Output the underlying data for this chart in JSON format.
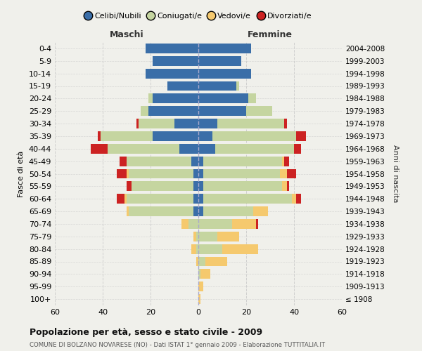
{
  "age_groups": [
    "0-4",
    "5-9",
    "10-14",
    "15-19",
    "20-24",
    "25-29",
    "30-34",
    "35-39",
    "40-44",
    "45-49",
    "50-54",
    "55-59",
    "60-64",
    "65-69",
    "70-74",
    "75-79",
    "80-84",
    "85-89",
    "90-94",
    "95-99",
    "100+"
  ],
  "birth_years": [
    "2004-2008",
    "1999-2003",
    "1994-1998",
    "1989-1993",
    "1984-1988",
    "1979-1983",
    "1974-1978",
    "1969-1973",
    "1964-1968",
    "1959-1963",
    "1954-1958",
    "1949-1953",
    "1944-1948",
    "1939-1943",
    "1934-1938",
    "1929-1933",
    "1924-1928",
    "1919-1923",
    "1914-1918",
    "1909-1913",
    "≤ 1908"
  ],
  "colors": {
    "celibi": "#3a6ea8",
    "coniugati": "#c5d5a0",
    "vedovi": "#f5c96e",
    "divorziati": "#cc2222"
  },
  "maschi": {
    "celibi": [
      22,
      19,
      22,
      13,
      19,
      21,
      10,
      19,
      8,
      3,
      2,
      2,
      2,
      2,
      0,
      0,
      0,
      0,
      0,
      0,
      0
    ],
    "coniugati": [
      0,
      0,
      0,
      0,
      2,
      3,
      15,
      22,
      30,
      27,
      27,
      26,
      28,
      27,
      4,
      1,
      1,
      0,
      0,
      0,
      0
    ],
    "vedovi": [
      0,
      0,
      0,
      0,
      0,
      0,
      0,
      0,
      0,
      0,
      1,
      0,
      1,
      1,
      3,
      1,
      2,
      1,
      0,
      0,
      0
    ],
    "divorziati": [
      0,
      0,
      0,
      0,
      0,
      0,
      1,
      1,
      7,
      3,
      4,
      2,
      3,
      0,
      0,
      0,
      0,
      0,
      0,
      0,
      0
    ]
  },
  "femmine": {
    "celibi": [
      22,
      18,
      22,
      16,
      21,
      20,
      8,
      6,
      7,
      2,
      2,
      2,
      2,
      2,
      0,
      0,
      0,
      0,
      0,
      0,
      0
    ],
    "coniugati": [
      0,
      0,
      0,
      1,
      3,
      11,
      28,
      35,
      33,
      33,
      32,
      33,
      37,
      21,
      14,
      8,
      10,
      3,
      1,
      0,
      0
    ],
    "vedovi": [
      0,
      0,
      0,
      0,
      0,
      0,
      0,
      0,
      0,
      1,
      3,
      2,
      2,
      6,
      10,
      9,
      15,
      9,
      4,
      2,
      1
    ],
    "divorziati": [
      0,
      0,
      0,
      0,
      0,
      0,
      1,
      4,
      3,
      2,
      4,
      1,
      2,
      0,
      1,
      0,
      0,
      0,
      0,
      0,
      0
    ]
  },
  "title": "Popolazione per età, sesso e stato civile - 2009",
  "subtitle": "COMUNE DI BOLZANO NOVARESE (NO) - Dati ISTAT 1° gennaio 2009 - Elaborazione TUTTITALIA.IT",
  "xlabel_left": "Maschi",
  "xlabel_right": "Femmine",
  "ylabel_left": "Fasce di età",
  "ylabel_right": "Anni di nascita",
  "xlim": 60,
  "bg_color": "#f0f0eb",
  "grid_color": "#cccccc",
  "legend_labels": [
    "Celibi/Nubili",
    "Coniugati/e",
    "Vedovi/e",
    "Divorziati/e"
  ]
}
